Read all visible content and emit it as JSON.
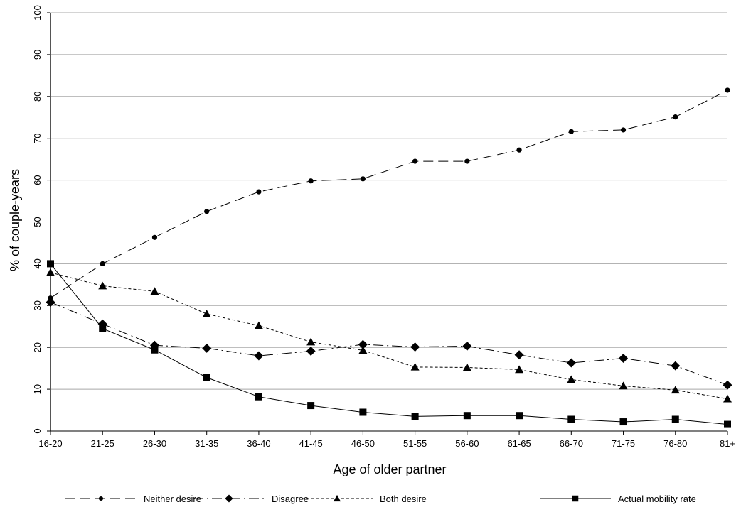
{
  "chart_data": {
    "type": "line",
    "xlabel": "Age of older partner",
    "ylabel": "% of couple-years",
    "categories": [
      "16-20",
      "21-25",
      "26-30",
      "31-35",
      "36-40",
      "41-45",
      "46-50",
      "51-55",
      "56-60",
      "61-65",
      "66-70",
      "71-75",
      "76-80",
      "81+"
    ],
    "ylim": [
      0,
      100
    ],
    "yticks": [
      0,
      10,
      20,
      30,
      40,
      50,
      60,
      70,
      80,
      90,
      100
    ],
    "grid": "horizontal",
    "legend_position": "bottom",
    "series": [
      {
        "name": "Neither desire",
        "marker": "circle",
        "dash": "long-dash",
        "color": "#000000",
        "values": [
          31.8,
          40.0,
          46.3,
          52.5,
          57.2,
          59.8,
          60.3,
          64.5,
          64.5,
          67.2,
          71.6,
          72.0,
          75.1,
          81.5
        ]
      },
      {
        "name": "Disagree",
        "marker": "diamond",
        "dash": "dash-dot",
        "color": "#000000",
        "values": [
          30.8,
          25.6,
          20.5,
          19.8,
          18.0,
          19.1,
          20.7,
          20.1,
          20.3,
          18.2,
          16.3,
          17.4,
          15.6,
          11.0
        ]
      },
      {
        "name": "Both desire",
        "marker": "triangle",
        "dash": "short-dash",
        "color": "#000000",
        "values": [
          37.9,
          34.7,
          33.4,
          28.0,
          25.2,
          21.3,
          19.3,
          15.3,
          15.2,
          14.7,
          12.3,
          10.8,
          9.8,
          7.7
        ]
      },
      {
        "name": "Actual mobility rate",
        "marker": "square",
        "dash": "solid",
        "color": "#000000",
        "values": [
          40.0,
          24.5,
          19.4,
          12.8,
          8.2,
          6.1,
          4.5,
          3.5,
          3.7,
          3.7,
          2.8,
          2.2,
          2.8,
          1.6
        ]
      }
    ]
  }
}
